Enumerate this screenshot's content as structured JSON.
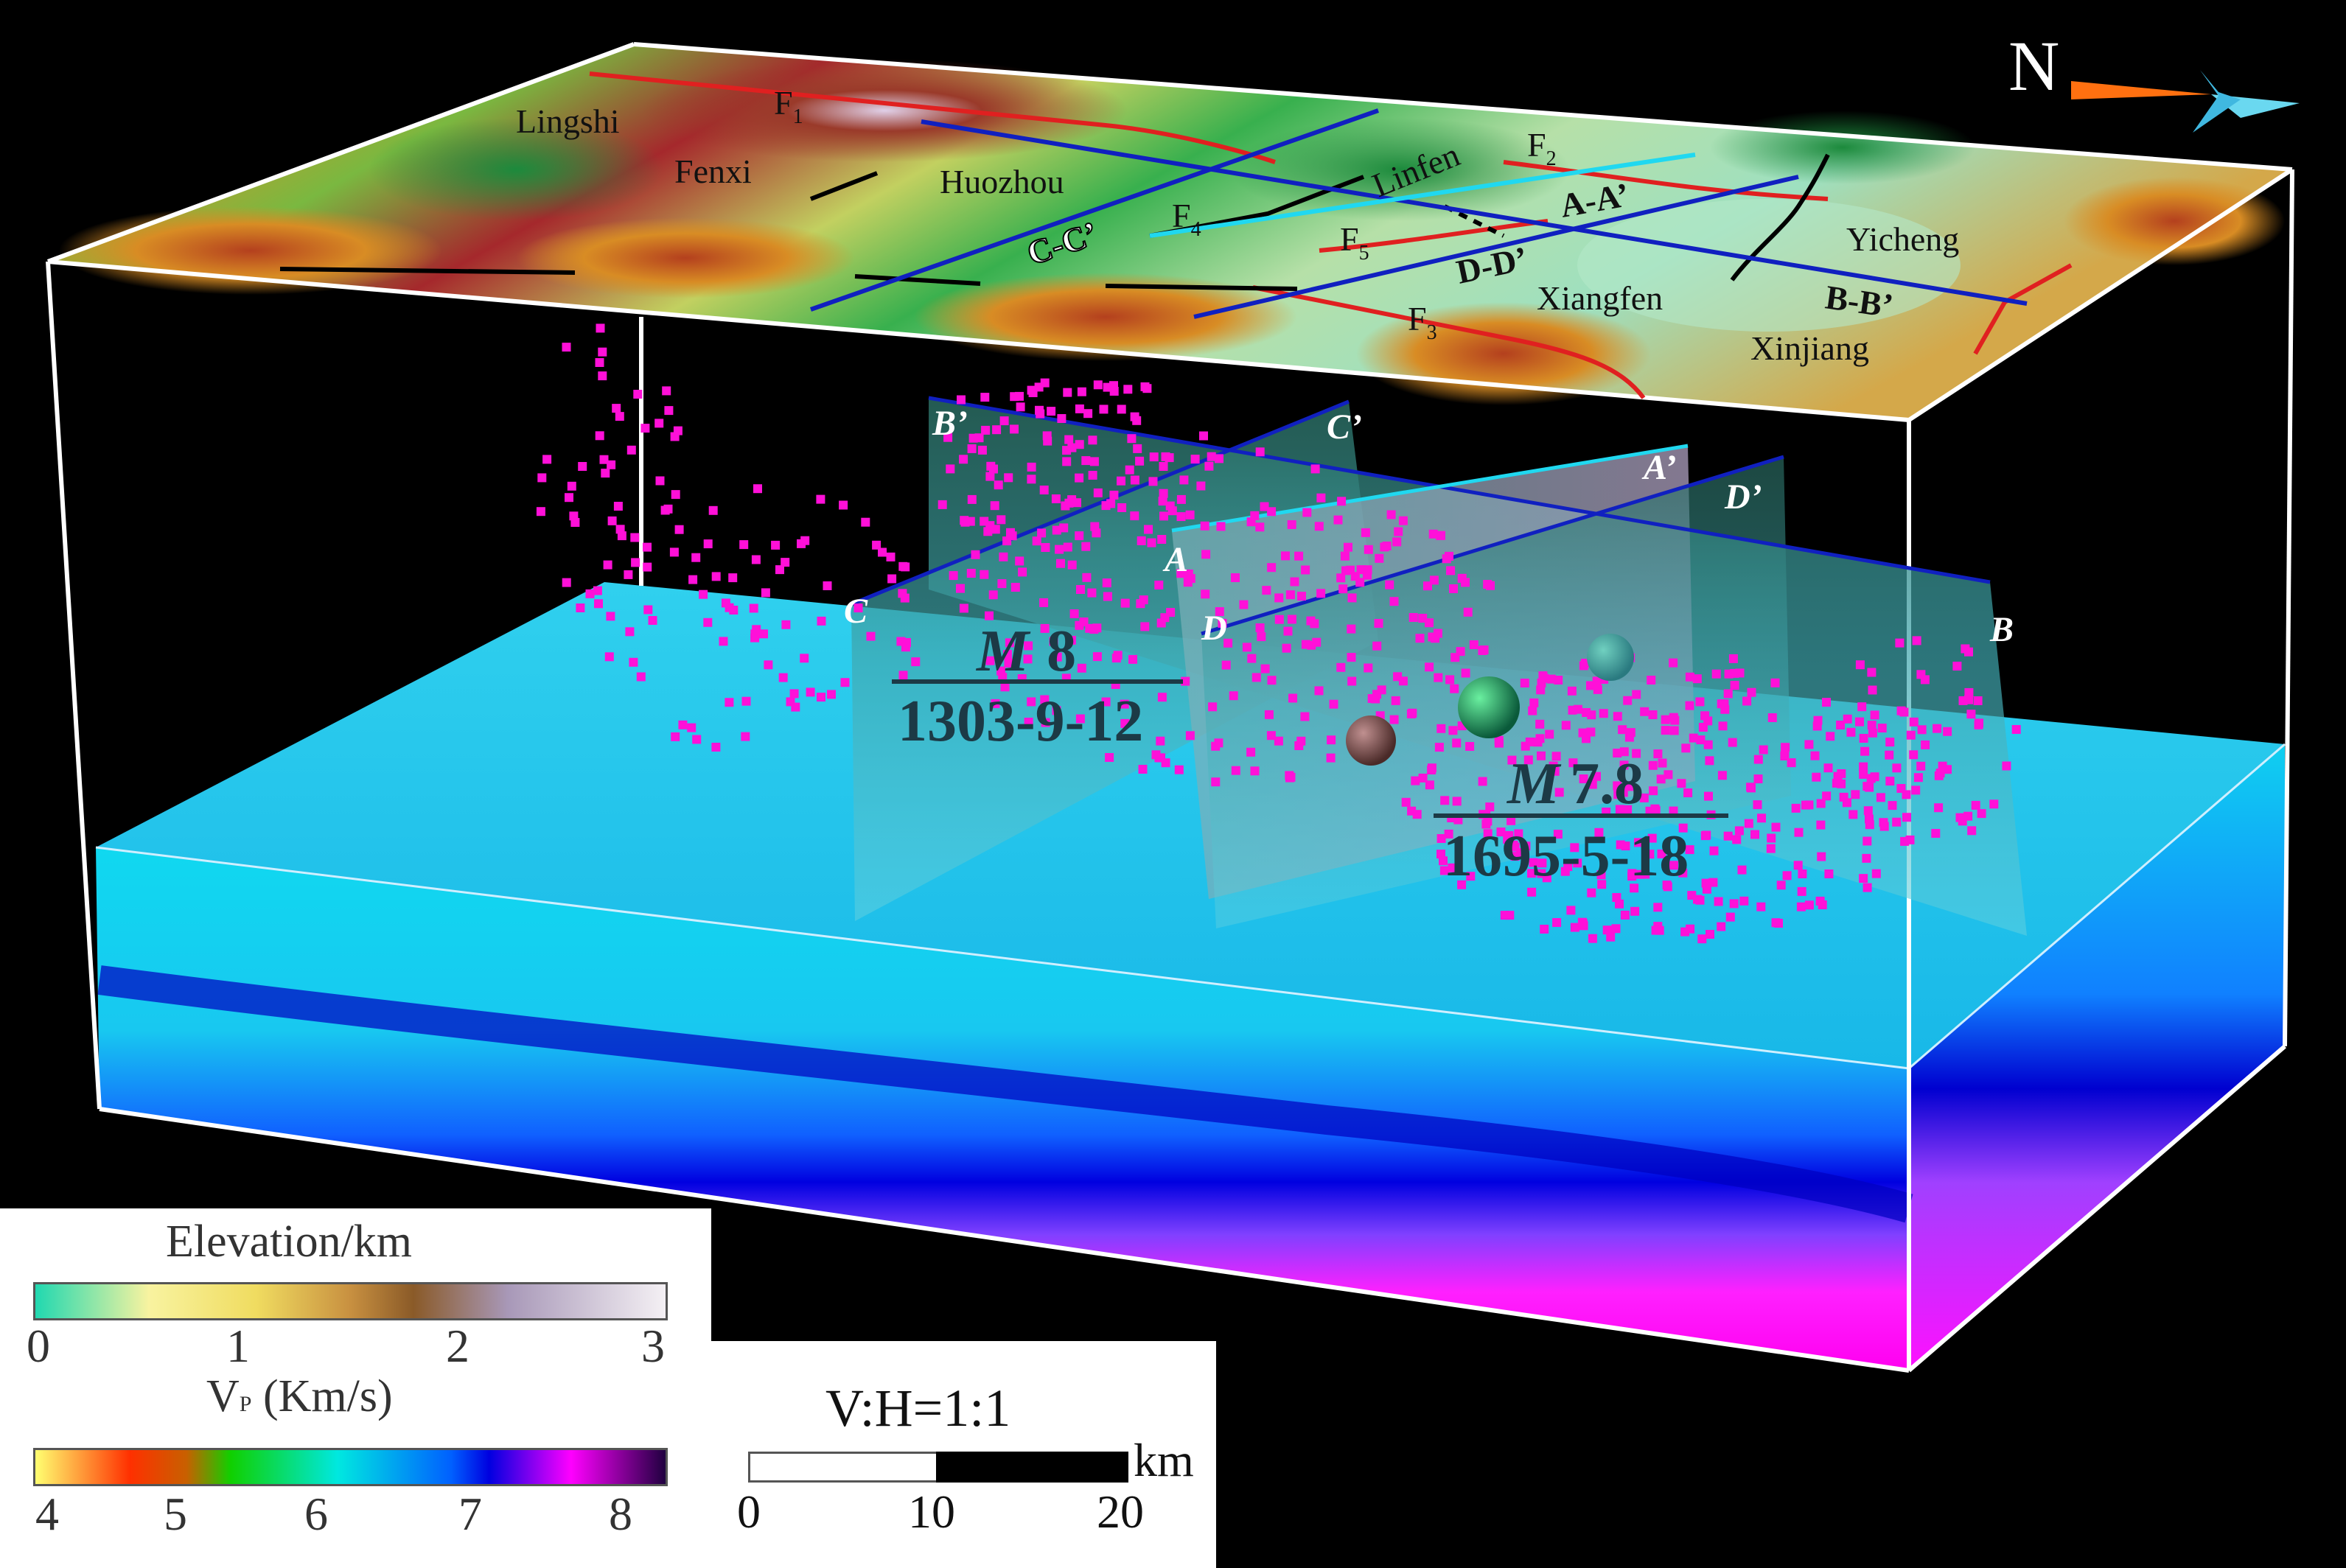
{
  "compass": {
    "north_label": "N"
  },
  "places": {
    "lingshi": "Lingshi",
    "fenxi": "Fenxi",
    "huozhou": "Huozhou",
    "linfen": "Linfen",
    "yicheng": "Yicheng",
    "xiangfen": "Xiangfen",
    "xinjiang": "Xinjiang"
  },
  "faults": {
    "f1": "F",
    "f1_sub": "1",
    "f2": "F",
    "f2_sub": "2",
    "f3": "F",
    "f3_sub": "3",
    "f4": "F",
    "f4_sub": "4",
    "f5": "F",
    "f5_sub": "5"
  },
  "profiles": {
    "aa": "A-A’",
    "bb": "B-B’",
    "cc": "C-C’",
    "dd": "D-D’",
    "a": "A",
    "a_prime": "A’",
    "b": "B",
    "b_prime": "B’",
    "c": "C",
    "c_prime": "C’",
    "d": "D",
    "d_prime": "D’"
  },
  "earthquakes": {
    "eq1_mag_m": "M",
    "eq1_mag_val": "8",
    "eq1_date": "1303-9-12",
    "eq2_mag_m": "M",
    "eq2_mag_val": "7.8",
    "eq2_date": "1695-5-18"
  },
  "legend": {
    "elevation": {
      "title": "Elevation/km",
      "ticks": [
        "0",
        "1",
        "2",
        "3"
      ],
      "colors": [
        "#20d8b0",
        "#f8f3a0",
        "#f0dc60",
        "#c89040",
        "#8a5a28",
        "#a898b8",
        "#f4f0f4"
      ]
    },
    "vp": {
      "title_v": "V",
      "title_sub": "P",
      "title_rest": " (Km/s)",
      "ticks": [
        "4",
        "5",
        "6",
        "7",
        "8"
      ],
      "colors": [
        "#ffff70",
        "#ff3000",
        "#c86000",
        "#10d000",
        "#00e8e0",
        "#0060ff",
        "#0000e0",
        "#ff00ff",
        "#200040"
      ]
    },
    "scale": {
      "title": "V:H=1:1",
      "unit": "km",
      "ticks": [
        "0",
        "10",
        "20"
      ]
    }
  }
}
